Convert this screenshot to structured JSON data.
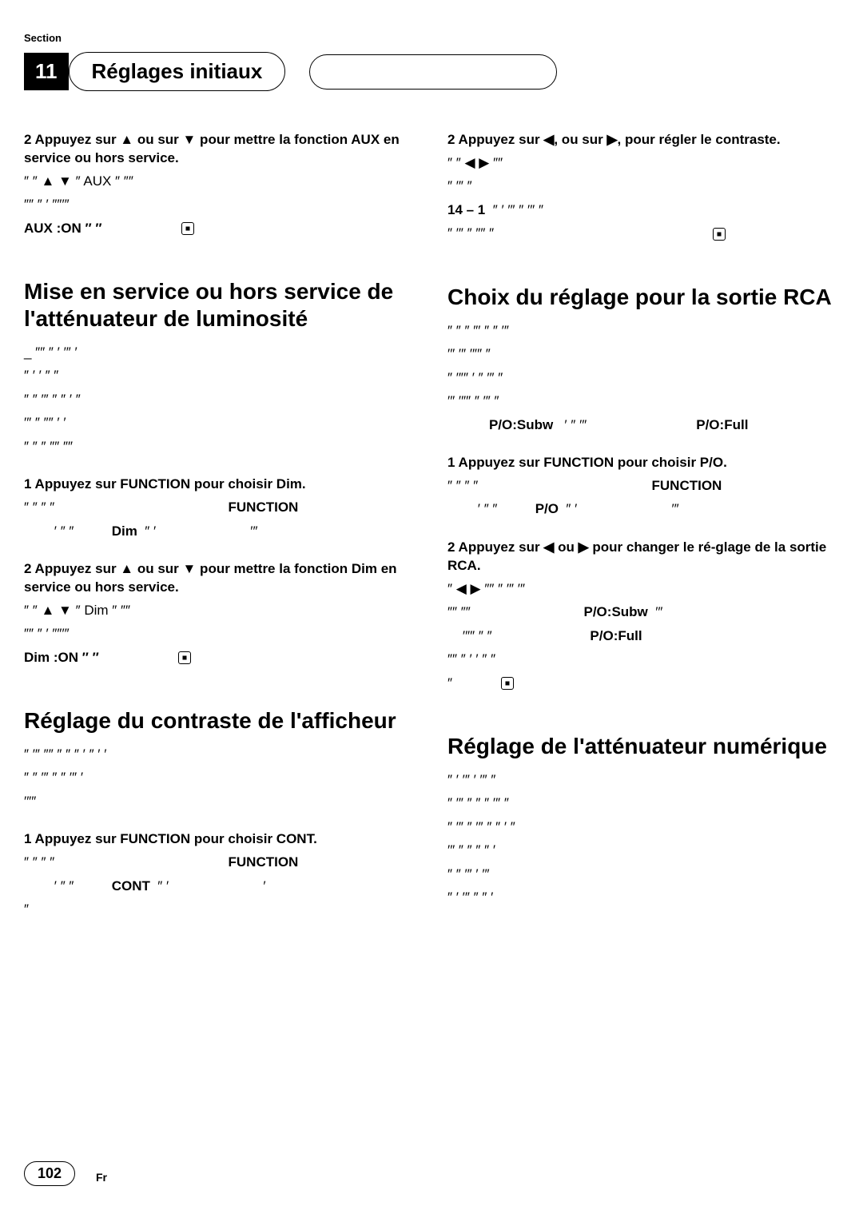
{
  "meta": {
    "section_label": "Section",
    "section_number": "11",
    "section_title": "Réglages initiaux",
    "page_number": "102",
    "language_code": "Fr"
  },
  "left_column": {
    "block1": {
      "step2_heading": "2   Appuyez sur ▲ ou sur ▼ pour mettre la fonction AUX en service ou hors service.",
      "line1": "″ ″                                   ▲       ▼ ″      AUX ″ ″″",
      "line2": "  ″″ ″  ′    ″″′″",
      "aux_on": "AUX :ON ″ ″"
    },
    "heading1": "Mise en service ou hors service de l'atténuateur de luminosité",
    "intro1": {
      "line1": "_ ″″ ″  ′                               ′″    ′",
      "line2": "″  ′    ′ ″ ″",
      "line3": "″  ″  ′″  ″ ″ ′  ″",
      "line4": "′″  ″  ″″  ′                                                  ′",
      "line5": "″  ″ ″ ″″    ″″"
    },
    "step1_1": {
      "heading": "1   Appuyez sur FUNCTION pour choisir Dim.",
      "line1": "″  ″  ″  ″                                                    FUNCTION",
      "line2": "        ′  ″ ″         Dim ″  ′                         ′″"
    },
    "step1_2": {
      "heading": "2   Appuyez sur ▲ ou sur ▼ pour mettre la fonction Dim en service ou hors service.",
      "line1": "″ ″                                   ▲       ▼ ″      Dim ″ ″″",
      "line2": "  ″″ ″  ′    ″″′″",
      "dim_on": "Dim :ON ″ ″"
    },
    "heading2": "Réglage du contraste de l'afficheur",
    "intro2": {
      "line1": "″  ′″  ″″  ″  ″  ″  ′ ″  ′                                                       ′",
      "line2": "″   ″ ′″  ″  ″  ′″                                                                  ′",
      "line3": "′″″"
    },
    "step2_1": {
      "heading": "1   Appuyez sur FUNCTION pour choisir CONT.",
      "line1": "″  ″  ″  ″                                                    FUNCTION",
      "line2": "        ′  ″ ″         CONT ″  ′                         ′",
      "line3": "″"
    }
  },
  "right_column": {
    "block1": {
      "step2_heading": "2   Appuyez sur ◀, ou sur ▶, pour régler le contraste.",
      "line1": "″ ″                                            ◀               ▶ ″″",
      "line2": "″  ′″  ″",
      "line3": "14 – 1 ″ ′  ′″  ″  ′″  ″",
      "line4": "″  ′″  ″  ″″  ″"
    },
    "heading1": "Choix du réglage pour la sortie RCA",
    "intro1": {
      "line1": "″   ″  ″ ″′  ″  ″  ′″",
      "line2": "′″   ′″                                 ′″″  ″",
      "line3": "″                            ′″″  ′  ″  ′″  ″",
      "line4": "′″                         ′″″  ″  ′″  ″",
      "line5_pre": "          P/O:Subw  ′ ″  ′″",
      "line5_post": "P/O:Full"
    },
    "step1_1": {
      "heading": "1   Appuyez sur FUNCTION pour choisir P/O.",
      "line1": "″  ″  ″  ″                                                    FUNCTION",
      "line2": "        ′  ″ ″         P/O ″  ′                         ′″"
    },
    "step1_2": {
      "heading": "2   Appuyez sur ◀ ou ▶ pour changer le ré-glage de la sortie RCA.",
      "line1": "″                         ◀      ▶ ″″  ″  ′″  ′″",
      "line2": "″″  ″″                            P/O:Subw  ′″",
      "line3": "    ′″″  ″  ″                         P/O:Full",
      "line4": "″″  ″  ′                             ′  ″  ″",
      "line5": "″"
    },
    "heading2": "Réglage de l'atténuateur numérique",
    "intro2": {
      "line1": "″  ′          ′″                   ′                  ′″  ″",
      "line2": "″   ′″ ″  ″ ″  ′″  ″",
      "line3": "″  ′″  ″  ′″  ″  ″  ′   ″",
      "line4": "  ′″  ″  ″  ″  ″  ′",
      "line5": "″   ″  ′″  ′                                    ′″",
      "line6": "″   ′  ′″  ″  ″  ′"
    }
  }
}
